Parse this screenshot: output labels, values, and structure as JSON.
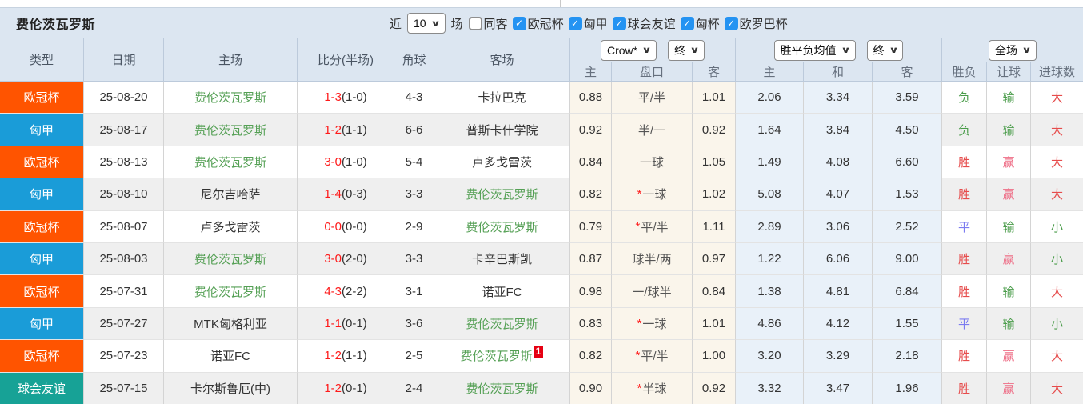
{
  "title": "费伦茨瓦罗斯",
  "glyphs": {
    "chevron": "∨",
    "check": "✓",
    "star": "*"
  },
  "filters": {
    "recent_label": "近",
    "recent_value": "10",
    "unit_label": "场",
    "checkboxes": [
      {
        "label": "同客",
        "checked": false
      },
      {
        "label": "欧冠杯",
        "checked": true
      },
      {
        "label": "匈甲",
        "checked": true
      },
      {
        "label": "球会友谊",
        "checked": true
      },
      {
        "label": "匈杯",
        "checked": true
      },
      {
        "label": "欧罗巴杯",
        "checked": true
      }
    ]
  },
  "header": {
    "main_columns": [
      "类型",
      "日期",
      "主场",
      "比分(半场)",
      "角球",
      "客场"
    ],
    "sub_columns": [
      "主",
      "盘口",
      "客",
      "主",
      "和",
      "客",
      "胜负",
      "让球",
      "进球数"
    ],
    "selects": {
      "odds_company": "Crow*",
      "odds_time": "终",
      "avg_label": "胜平负均值",
      "avg_time": "终",
      "scope": "全场"
    }
  },
  "league_colors": {
    "欧冠杯": "#ff5400",
    "匈甲": "#1a9cd8",
    "球会友谊": "#17a296"
  },
  "result_colors": {
    "green": "#4a9c4a",
    "red": "#e64c4c",
    "pink": "#ee6d86",
    "blue": "#7b7bf0"
  },
  "accent_colors": {
    "header_bg": "#dce6f1",
    "cream_bg": "#faf5eb",
    "blue_bg": "#e9f1f9",
    "team_green": "#55a055",
    "score_red": "#fe1a1a",
    "badge_red": "#e60012",
    "checkbox_blue": "#2493f2"
  },
  "rows": [
    {
      "league": "欧冠杯",
      "date": "25-08-20",
      "home": "费伦茨瓦罗斯",
      "home_highlight": true,
      "score": "1-3",
      "half": "(1-0)",
      "corner": "4-3",
      "away": "卡拉巴克",
      "away_highlight": false,
      "away_badge": "",
      "crow": {
        "home": "0.88",
        "star": false,
        "handicap": "平/半",
        "away": "1.01"
      },
      "avg": {
        "home": "2.06",
        "draw": "3.34",
        "away": "3.59"
      },
      "result": {
        "wdl": "负",
        "wdl_color": "green",
        "handicap": "输",
        "handicap_color": "green",
        "goals": "大",
        "goals_color": "red"
      }
    },
    {
      "league": "匈甲",
      "date": "25-08-17",
      "home": "费伦茨瓦罗斯",
      "home_highlight": true,
      "score": "1-2",
      "half": "(1-1)",
      "corner": "6-6",
      "away": "普斯卡什学院",
      "away_highlight": false,
      "away_badge": "",
      "crow": {
        "home": "0.92",
        "star": false,
        "handicap": "半/一",
        "away": "0.92"
      },
      "avg": {
        "home": "1.64",
        "draw": "3.84",
        "away": "4.50"
      },
      "result": {
        "wdl": "负",
        "wdl_color": "green",
        "handicap": "输",
        "handicap_color": "green",
        "goals": "大",
        "goals_color": "red"
      }
    },
    {
      "league": "欧冠杯",
      "date": "25-08-13",
      "home": "费伦茨瓦罗斯",
      "home_highlight": true,
      "score": "3-0",
      "half": "(1-0)",
      "corner": "5-4",
      "away": "卢多戈雷茨",
      "away_highlight": false,
      "away_badge": "",
      "crow": {
        "home": "0.84",
        "star": false,
        "handicap": "一球",
        "away": "1.05"
      },
      "avg": {
        "home": "1.49",
        "draw": "4.08",
        "away": "6.60"
      },
      "result": {
        "wdl": "胜",
        "wdl_color": "red",
        "handicap": "赢",
        "handicap_color": "pink",
        "goals": "大",
        "goals_color": "red"
      }
    },
    {
      "league": "匈甲",
      "date": "25-08-10",
      "home": "尼尔吉哈萨",
      "home_highlight": false,
      "score": "1-4",
      "half": "(0-3)",
      "corner": "3-3",
      "away": "费伦茨瓦罗斯",
      "away_highlight": true,
      "away_badge": "",
      "crow": {
        "home": "0.82",
        "star": true,
        "handicap": "一球",
        "away": "1.02"
      },
      "avg": {
        "home": "5.08",
        "draw": "4.07",
        "away": "1.53"
      },
      "result": {
        "wdl": "胜",
        "wdl_color": "red",
        "handicap": "赢",
        "handicap_color": "pink",
        "goals": "大",
        "goals_color": "red"
      }
    },
    {
      "league": "欧冠杯",
      "date": "25-08-07",
      "home": "卢多戈雷茨",
      "home_highlight": false,
      "score": "0-0",
      "half": "(0-0)",
      "corner": "2-9",
      "away": "费伦茨瓦罗斯",
      "away_highlight": true,
      "away_badge": "",
      "crow": {
        "home": "0.79",
        "star": true,
        "handicap": "平/半",
        "away": "1.11"
      },
      "avg": {
        "home": "2.89",
        "draw": "3.06",
        "away": "2.52"
      },
      "result": {
        "wdl": "平",
        "wdl_color": "blue",
        "handicap": "输",
        "handicap_color": "green",
        "goals": "小",
        "goals_color": "green"
      }
    },
    {
      "league": "匈甲",
      "date": "25-08-03",
      "home": "费伦茨瓦罗斯",
      "home_highlight": true,
      "score": "3-0",
      "half": "(2-0)",
      "corner": "3-3",
      "away": "卡辛巴斯凯",
      "away_highlight": false,
      "away_badge": "",
      "crow": {
        "home": "0.87",
        "star": false,
        "handicap": "球半/两",
        "away": "0.97"
      },
      "avg": {
        "home": "1.22",
        "draw": "6.06",
        "away": "9.00"
      },
      "result": {
        "wdl": "胜",
        "wdl_color": "red",
        "handicap": "赢",
        "handicap_color": "pink",
        "goals": "小",
        "goals_color": "green"
      }
    },
    {
      "league": "欧冠杯",
      "date": "25-07-31",
      "home": "费伦茨瓦罗斯",
      "home_highlight": true,
      "score": "4-3",
      "half": "(2-2)",
      "corner": "3-1",
      "away": "诺亚FC",
      "away_highlight": false,
      "away_badge": "",
      "crow": {
        "home": "0.98",
        "star": false,
        "handicap": "一/球半",
        "away": "0.84"
      },
      "avg": {
        "home": "1.38",
        "draw": "4.81",
        "away": "6.84"
      },
      "result": {
        "wdl": "胜",
        "wdl_color": "red",
        "handicap": "输",
        "handicap_color": "green",
        "goals": "大",
        "goals_color": "red"
      }
    },
    {
      "league": "匈甲",
      "date": "25-07-27",
      "home": "MTK匈格利亚",
      "home_highlight": false,
      "score": "1-1",
      "half": "(0-1)",
      "corner": "3-6",
      "away": "费伦茨瓦罗斯",
      "away_highlight": true,
      "away_badge": "",
      "crow": {
        "home": "0.83",
        "star": true,
        "handicap": "一球",
        "away": "1.01"
      },
      "avg": {
        "home": "4.86",
        "draw": "4.12",
        "away": "1.55"
      },
      "result": {
        "wdl": "平",
        "wdl_color": "blue",
        "handicap": "输",
        "handicap_color": "green",
        "goals": "小",
        "goals_color": "green"
      }
    },
    {
      "league": "欧冠杯",
      "date": "25-07-23",
      "home": "诺亚FC",
      "home_highlight": false,
      "score": "1-2",
      "half": "(1-1)",
      "corner": "2-5",
      "away": "费伦茨瓦罗斯",
      "away_highlight": true,
      "away_badge": "1",
      "crow": {
        "home": "0.82",
        "star": true,
        "handicap": "平/半",
        "away": "1.00"
      },
      "avg": {
        "home": "3.20",
        "draw": "3.29",
        "away": "2.18"
      },
      "result": {
        "wdl": "胜",
        "wdl_color": "red",
        "handicap": "赢",
        "handicap_color": "pink",
        "goals": "大",
        "goals_color": "red"
      }
    },
    {
      "league": "球会友谊",
      "date": "25-07-15",
      "home": "卡尔斯鲁厄(中)",
      "home_highlight": false,
      "score": "1-2",
      "half": "(0-1)",
      "corner": "2-4",
      "away": "费伦茨瓦罗斯",
      "away_highlight": true,
      "away_badge": "",
      "crow": {
        "home": "0.90",
        "star": true,
        "handicap": "半球",
        "away": "0.92"
      },
      "avg": {
        "home": "3.32",
        "draw": "3.47",
        "away": "1.96"
      },
      "result": {
        "wdl": "胜",
        "wdl_color": "red",
        "handicap": "赢",
        "handicap_color": "pink",
        "goals": "大",
        "goals_color": "red"
      }
    }
  ]
}
